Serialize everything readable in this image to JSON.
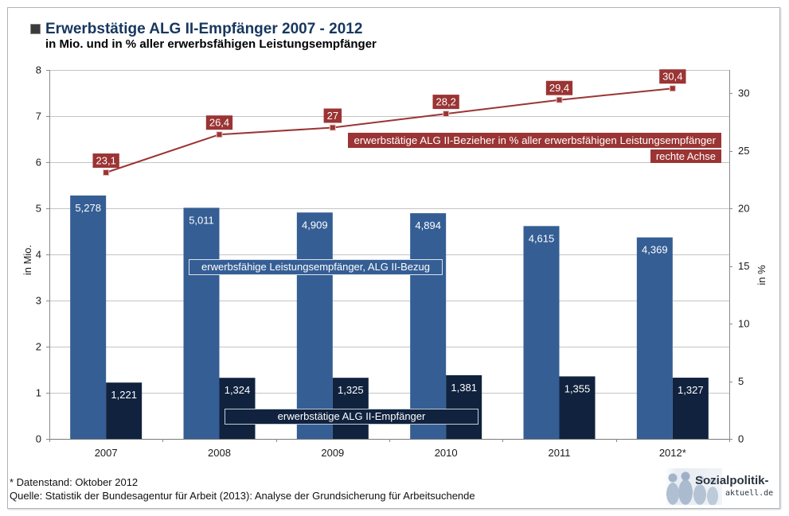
{
  "chart_data": {
    "type": "bar",
    "title": "Erwerbstätige ALG II-Empfänger 2007 - 2012",
    "subtitle": "in Mio. und in % aller erwerbsfähigen Leistungsempfänger",
    "categories": [
      "2007",
      "2008",
      "2009",
      "2010",
      "2011",
      "2012*"
    ],
    "ylabel": "in Mio.",
    "y2label": "in %",
    "ylim": [
      0,
      8
    ],
    "y2lim": [
      0,
      32
    ],
    "yticks": [
      0,
      1,
      2,
      3,
      4,
      5,
      6,
      7,
      8
    ],
    "y2ticks": [
      0,
      5,
      10,
      15,
      20,
      25,
      30
    ],
    "grid": true,
    "legend": "inside",
    "series": [
      {
        "name": "erwerbsfähige Leistungsempfänger, ALG II-Bezug",
        "type": "bar",
        "axis": "left",
        "color": "#355e94",
        "values": [
          5.278,
          5.011,
          4.909,
          4.894,
          4.615,
          4.369
        ]
      },
      {
        "name": "erwerbstätige ALG II-Empfänger",
        "type": "bar",
        "axis": "left",
        "color": "#10223e",
        "values": [
          1.221,
          1.324,
          1.325,
          1.381,
          1.355,
          1.327
        ]
      },
      {
        "name": "erwerbstätige ALG II-Bezieher in % aller erwerbsfähigen Leistungsempfänger",
        "axis_note": "rechte Achse",
        "type": "line",
        "axis": "right",
        "color": "#9b3434",
        "values": [
          23.1,
          26.4,
          27,
          28.2,
          29.4,
          30.4
        ]
      }
    ]
  },
  "footer": {
    "note": "* Datenstand: Oktober 2012",
    "source": "Quelle: Statistik der Bundesagentur für Arbeit (2013): Analyse der Grundsicherung für Arbeitsuchende"
  },
  "logo": {
    "text_main": "Sozialpolitik-",
    "text_sub": "aktuell.de"
  }
}
